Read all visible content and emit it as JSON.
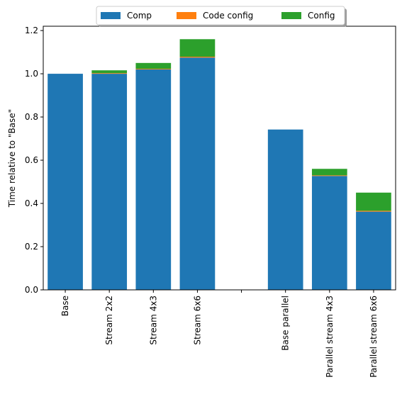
{
  "chart_data": {
    "type": "bar",
    "stacked": true,
    "title": "",
    "xlabel": "",
    "ylabel": "Time relative to \"Base\"",
    "ylim": [
      0,
      1.22
    ],
    "yticks": [
      0.0,
      0.2,
      0.4,
      0.6,
      0.8,
      1.0,
      1.2
    ],
    "ytick_labels": [
      "0.0",
      "0.2",
      "0.4",
      "0.6",
      "0.8",
      "1.0",
      "1.2"
    ],
    "grid": false,
    "legend_position": "top-center",
    "categories": [
      "Base",
      "Stream 2x2",
      "Stream 4x3",
      "Stream 6x6",
      "",
      "Base parallel",
      "Parallel stream 4x3",
      "Parallel stream 6x6"
    ],
    "series": [
      {
        "name": "Comp",
        "color": "#1f77b4",
        "values": [
          1.0,
          1.0,
          1.02,
          1.075,
          0,
          0.742,
          0.527,
          0.362
        ]
      },
      {
        "name": "Code config",
        "color": "#ff7f0e",
        "values": [
          0,
          0.003,
          0.003,
          0.004,
          0,
          0,
          0.003,
          0.004
        ]
      },
      {
        "name": "Config",
        "color": "#2ca02c",
        "values": [
          0,
          0.013,
          0.027,
          0.081,
          0,
          0,
          0.03,
          0.084
        ]
      }
    ]
  }
}
